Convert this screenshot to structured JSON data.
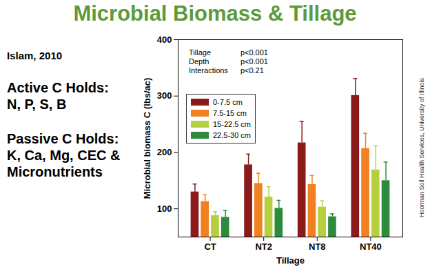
{
  "chart_data": {
    "type": "bar",
    "title": "Microbial Biomass & Tillage",
    "x_label": "Tillage",
    "y_label": "Microbial biomass C (lbs/ac)",
    "categories": [
      "CT",
      "NT2",
      "NT8",
      "NT40"
    ],
    "series": [
      {
        "name": "0-7.5 cm",
        "color": "#8b1a1a",
        "values": [
          130,
          178,
          217,
          301
        ],
        "errors": [
          14,
          19,
          38,
          30
        ]
      },
      {
        "name": "7.5-15 cm",
        "color": "#f08020",
        "values": [
          113,
          145,
          143,
          207
        ],
        "errors": [
          12,
          18,
          16,
          27
        ]
      },
      {
        "name": "15-22.5 cm",
        "color": "#b5cf3e",
        "values": [
          88,
          121,
          103,
          169
        ],
        "errors": [
          7,
          18,
          11,
          43
        ]
      },
      {
        "name": "22.5-30 cm",
        "color": "#2e8b3e",
        "values": [
          85,
          101,
          86,
          150
        ],
        "errors": [
          12,
          14,
          5,
          33
        ]
      }
    ],
    "ylim": [
      50,
      400
    ],
    "yticks": [
      100,
      200,
      300,
      400
    ],
    "grid": false,
    "legend": "top-left",
    "stats": [
      {
        "term": "Tillage",
        "p": "p<0.001"
      },
      {
        "term": "Depth",
        "p": "p<0.001"
      },
      {
        "term": "Interactions",
        "p": "p<0.21"
      }
    ],
    "side_text": {
      "source": "Islam, 2010",
      "blocks": [
        {
          "heading": "Active C Holds:",
          "items": "N, P, S, B"
        },
        {
          "heading": "Passive C Holds:",
          "items": "K, Ca, Mg, CEC & Micronutrients"
        }
      ]
    },
    "credit": "Hoorman Soil Health Services, University of Illinois"
  }
}
